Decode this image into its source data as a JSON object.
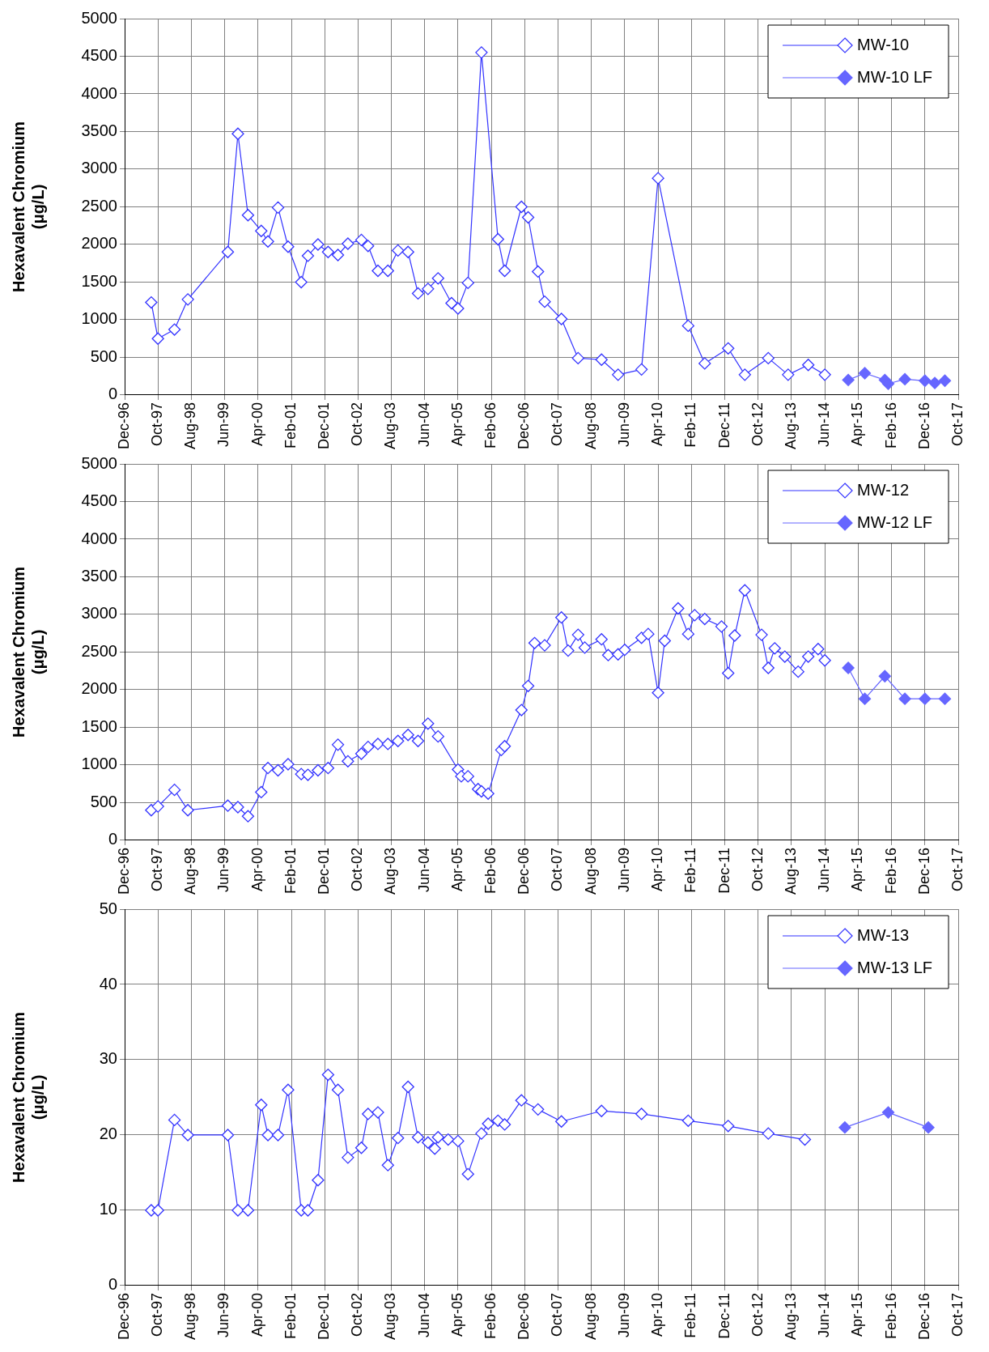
{
  "chart_data": [
    {
      "type": "line",
      "ylabel": "Hexavalent Chromium (μg/L)",
      "ylim": [
        0,
        5000
      ],
      "yticks": [
        0,
        500,
        1000,
        1500,
        2000,
        2500,
        3000,
        3500,
        4000,
        4500,
        5000
      ],
      "xlim": [
        "1996-12",
        "2017-10"
      ],
      "xticks": [
        {
          "value": "1996-12",
          "label": "Dec-96"
        },
        {
          "value": "1997-10",
          "label": "Oct-97"
        },
        {
          "value": "1998-08",
          "label": "Aug-98"
        },
        {
          "value": "1999-06",
          "label": "Jun-99"
        },
        {
          "value": "2000-04",
          "label": "Apr-00"
        },
        {
          "value": "2001-02",
          "label": "Feb-01"
        },
        {
          "value": "2001-12",
          "label": "Dec-01"
        },
        {
          "value": "2002-10",
          "label": "Oct-02"
        },
        {
          "value": "2003-08",
          "label": "Aug-03"
        },
        {
          "value": "2004-06",
          "label": "Jun-04"
        },
        {
          "value": "2005-04",
          "label": "Apr-05"
        },
        {
          "value": "2006-02",
          "label": "Feb-06"
        },
        {
          "value": "2006-12",
          "label": "Dec-06"
        },
        {
          "value": "2007-10",
          "label": "Oct-07"
        },
        {
          "value": "2008-08",
          "label": "Aug-08"
        },
        {
          "value": "2009-06",
          "label": "Jun-09"
        },
        {
          "value": "2010-04",
          "label": "Apr-10"
        },
        {
          "value": "2011-02",
          "label": "Feb-11"
        },
        {
          "value": "2011-12",
          "label": "Dec-11"
        },
        {
          "value": "2012-10",
          "label": "Oct-12"
        },
        {
          "value": "2013-08",
          "label": "Aug-13"
        },
        {
          "value": "2014-06",
          "label": "Jun-14"
        },
        {
          "value": "2015-04",
          "label": "Apr-15"
        },
        {
          "value": "2016-02",
          "label": "Feb-16"
        },
        {
          "value": "2016-12",
          "label": "Dec-16"
        },
        {
          "value": "2017-10",
          "label": "Oct-17"
        }
      ],
      "grid": true,
      "legend": "top right",
      "marker": "diamond",
      "line_style": "solid",
      "series": [
        {
          "name": "MW-10",
          "color": "#3333ff",
          "x": [
            "1997-08",
            "1997-10",
            "1998-03",
            "1998-07",
            "1999-07",
            "1999-10",
            "2000-01",
            "2000-05",
            "2000-07",
            "2000-10",
            "2001-01",
            "2001-05",
            "2001-07",
            "2001-10",
            "2002-01",
            "2002-04",
            "2002-07",
            "2002-11",
            "2003-01",
            "2003-04",
            "2003-07",
            "2003-10",
            "2004-01",
            "2004-04",
            "2004-07",
            "2004-10",
            "2005-02",
            "2005-04",
            "2005-07",
            "2005-11",
            "2006-04",
            "2006-06",
            "2006-11",
            "2007-01",
            "2007-04",
            "2007-06",
            "2007-11",
            "2008-04",
            "2008-11",
            "2009-04",
            "2009-11",
            "2010-04",
            "2011-01",
            "2011-06",
            "2012-01",
            "2012-06",
            "2013-01",
            "2013-07",
            "2014-01",
            "2014-06"
          ],
          "values": [
            1230,
            750,
            870,
            1270,
            1900,
            3470,
            2390,
            2180,
            2040,
            2490,
            1970,
            1500,
            1850,
            2000,
            1900,
            1860,
            2010,
            2060,
            1980,
            1650,
            1650,
            1920,
            1900,
            1350,
            1410,
            1550,
            1220,
            1150,
            1490,
            4550,
            2070,
            1650,
            2500,
            2360,
            1640,
            1240,
            1010,
            490,
            470,
            270,
            340,
            2880,
            920,
            420,
            620,
            270,
            490,
            270,
            400,
            270
          ]
        },
        {
          "name": "MW-10 LF",
          "color": "#6666ff",
          "x": [
            "2015-01",
            "2015-06",
            "2015-12",
            "2016-01",
            "2016-06",
            "2016-12",
            "2017-03",
            "2017-06"
          ],
          "values": [
            200,
            290,
            200,
            150,
            210,
            190,
            160,
            190
          ]
        }
      ]
    },
    {
      "type": "line",
      "ylabel": "Hexavalent Chromium (μg/L)",
      "ylim": [
        0,
        5000
      ],
      "yticks": [
        0,
        500,
        1000,
        1500,
        2000,
        2500,
        3000,
        3500,
        4000,
        4500,
        5000
      ],
      "xlim": [
        "1996-12",
        "2017-10"
      ],
      "xticks": [
        {
          "value": "1996-12",
          "label": "Dec-96"
        },
        {
          "value": "1997-10",
          "label": "Oct-97"
        },
        {
          "value": "1998-08",
          "label": "Aug-98"
        },
        {
          "value": "1999-06",
          "label": "Jun-99"
        },
        {
          "value": "2000-04",
          "label": "Apr-00"
        },
        {
          "value": "2001-02",
          "label": "Feb-01"
        },
        {
          "value": "2001-12",
          "label": "Dec-01"
        },
        {
          "value": "2002-10",
          "label": "Oct-02"
        },
        {
          "value": "2003-08",
          "label": "Aug-03"
        },
        {
          "value": "2004-06",
          "label": "Jun-04"
        },
        {
          "value": "2005-04",
          "label": "Apr-05"
        },
        {
          "value": "2006-02",
          "label": "Feb-06"
        },
        {
          "value": "2006-12",
          "label": "Dec-06"
        },
        {
          "value": "2007-10",
          "label": "Oct-07"
        },
        {
          "value": "2008-08",
          "label": "Aug-08"
        },
        {
          "value": "2009-06",
          "label": "Jun-09"
        },
        {
          "value": "2010-04",
          "label": "Apr-10"
        },
        {
          "value": "2011-02",
          "label": "Feb-11"
        },
        {
          "value": "2011-12",
          "label": "Dec-11"
        },
        {
          "value": "2012-10",
          "label": "Oct-12"
        },
        {
          "value": "2013-08",
          "label": "Aug-13"
        },
        {
          "value": "2014-06",
          "label": "Jun-14"
        },
        {
          "value": "2015-04",
          "label": "Apr-15"
        },
        {
          "value": "2016-02",
          "label": "Feb-16"
        },
        {
          "value": "2016-12",
          "label": "Dec-16"
        },
        {
          "value": "2017-10",
          "label": "Oct-17"
        }
      ],
      "grid": true,
      "legend": "top right",
      "marker": "diamond",
      "line_style": "solid",
      "series": [
        {
          "name": "MW-12",
          "color": "#3333ff",
          "x": [
            "1997-08",
            "1997-10",
            "1998-03",
            "1998-07",
            "1999-07",
            "1999-10",
            "2000-01",
            "2000-05",
            "2000-07",
            "2000-10",
            "2001-01",
            "2001-05",
            "2001-07",
            "2001-10",
            "2002-01",
            "2002-04",
            "2002-07",
            "2002-11",
            "2003-01",
            "2003-04",
            "2003-07",
            "2003-10",
            "2004-01",
            "2004-04",
            "2004-07",
            "2004-10",
            "2005-04",
            "2005-05",
            "2005-07",
            "2005-10",
            "2005-11",
            "2006-01",
            "2006-05",
            "2006-06",
            "2006-11",
            "2007-01",
            "2007-03",
            "2007-06",
            "2007-11",
            "2008-01",
            "2008-04",
            "2008-06",
            "2008-11",
            "2009-01",
            "2009-04",
            "2009-06",
            "2009-11",
            "2010-01",
            "2010-04",
            "2010-06",
            "2010-10",
            "2011-01",
            "2011-03",
            "2011-06",
            "2011-11",
            "2012-01",
            "2012-03",
            "2012-06",
            "2012-11",
            "2013-01",
            "2013-03",
            "2013-06",
            "2013-10",
            "2014-01",
            "2014-04",
            "2014-06"
          ],
          "values": [
            400,
            450,
            670,
            400,
            460,
            440,
            320,
            640,
            960,
            930,
            1010,
            880,
            870,
            930,
            960,
            1270,
            1050,
            1150,
            1240,
            1280,
            1280,
            1320,
            1400,
            1320,
            1550,
            1380,
            940,
            850,
            850,
            680,
            650,
            620,
            1200,
            1250,
            1730,
            2050,
            2620,
            2590,
            2960,
            2520,
            2730,
            2560,
            2670,
            2460,
            2470,
            2530,
            2690,
            2740,
            1960,
            2650,
            3080,
            2740,
            2990,
            2940,
            2840,
            2220,
            2720,
            3320,
            2730,
            2290,
            2550,
            2440,
            2240,
            2440,
            2540,
            2390
          ]
        },
        {
          "name": "MW-12 LF",
          "color": "#6666ff",
          "x": [
            "2015-01",
            "2015-06",
            "2015-12",
            "2016-06",
            "2016-12",
            "2017-06"
          ],
          "values": [
            2290,
            1880,
            2180,
            1880,
            1880,
            1880
          ]
        }
      ]
    },
    {
      "type": "line",
      "ylabel": "Hexavalent Chromium (μg/L)",
      "ylim": [
        0,
        50
      ],
      "yticks": [
        0,
        10,
        20,
        30,
        40,
        50
      ],
      "xlim": [
        "1996-12",
        "2017-10"
      ],
      "xticks": [
        {
          "value": "1996-12",
          "label": "Dec-96"
        },
        {
          "value": "1997-10",
          "label": "Oct-97"
        },
        {
          "value": "1998-08",
          "label": "Aug-98"
        },
        {
          "value": "1999-06",
          "label": "Jun-99"
        },
        {
          "value": "2000-04",
          "label": "Apr-00"
        },
        {
          "value": "2001-02",
          "label": "Feb-01"
        },
        {
          "value": "2001-12",
          "label": "Dec-01"
        },
        {
          "value": "2002-10",
          "label": "Oct-02"
        },
        {
          "value": "2003-08",
          "label": "Aug-03"
        },
        {
          "value": "2004-06",
          "label": "Jun-04"
        },
        {
          "value": "2005-04",
          "label": "Apr-05"
        },
        {
          "value": "2006-02",
          "label": "Feb-06"
        },
        {
          "value": "2006-12",
          "label": "Dec-06"
        },
        {
          "value": "2007-10",
          "label": "Oct-07"
        },
        {
          "value": "2008-08",
          "label": "Aug-08"
        },
        {
          "value": "2009-06",
          "label": "Jun-09"
        },
        {
          "value": "2010-04",
          "label": "Apr-10"
        },
        {
          "value": "2011-02",
          "label": "Feb-11"
        },
        {
          "value": "2011-12",
          "label": "Dec-11"
        },
        {
          "value": "2012-10",
          "label": "Oct-12"
        },
        {
          "value": "2013-08",
          "label": "Aug-13"
        },
        {
          "value": "2014-06",
          "label": "Jun-14"
        },
        {
          "value": "2015-04",
          "label": "Apr-15"
        },
        {
          "value": "2016-02",
          "label": "Feb-16"
        },
        {
          "value": "2016-12",
          "label": "Dec-16"
        },
        {
          "value": "2017-10",
          "label": "Oct-17"
        }
      ],
      "grid": true,
      "legend": "top right",
      "marker": "diamond",
      "line_style": "solid",
      "series": [
        {
          "name": "MW-13",
          "color": "#3333ff",
          "x": [
            "1997-08",
            "1997-10",
            "1998-03",
            "1998-07",
            "1999-07",
            "1999-10",
            "2000-01",
            "2000-05",
            "2000-07",
            "2000-10",
            "2001-01",
            "2001-05",
            "2001-07",
            "2001-10",
            "2002-01",
            "2002-04",
            "2002-07",
            "2002-11",
            "2003-01",
            "2003-04",
            "2003-07",
            "2003-10",
            "2004-01",
            "2004-04",
            "2004-07",
            "2004-09",
            "2004-10",
            "2005-01",
            "2005-04",
            "2005-07",
            "2005-11",
            "2006-01",
            "2006-04",
            "2006-06",
            "2006-11",
            "2007-04",
            "2007-11",
            "2008-11",
            "2009-11",
            "2011-01",
            "2012-01",
            "2013-01",
            "2013-12"
          ],
          "values": [
            10,
            10,
            22,
            20,
            20,
            10,
            10,
            24,
            20,
            20,
            26,
            10,
            10,
            14,
            28,
            26,
            17,
            18.3,
            22.8,
            23,
            16,
            19.6,
            26.4,
            19.7,
            19,
            18.2,
            19.7,
            19.4,
            19.2,
            14.8,
            20.2,
            21.5,
            21.9,
            21.4,
            24.6,
            23.4,
            21.8,
            23.2,
            22.8,
            21.9,
            21.2,
            20.2,
            19.4
          ]
        },
        {
          "name": "MW-13 LF",
          "color": "#6666ff",
          "x": [
            "2014-12",
            "2016-01",
            "2017-01"
          ],
          "values": [
            21,
            23,
            21
          ]
        }
      ]
    }
  ]
}
